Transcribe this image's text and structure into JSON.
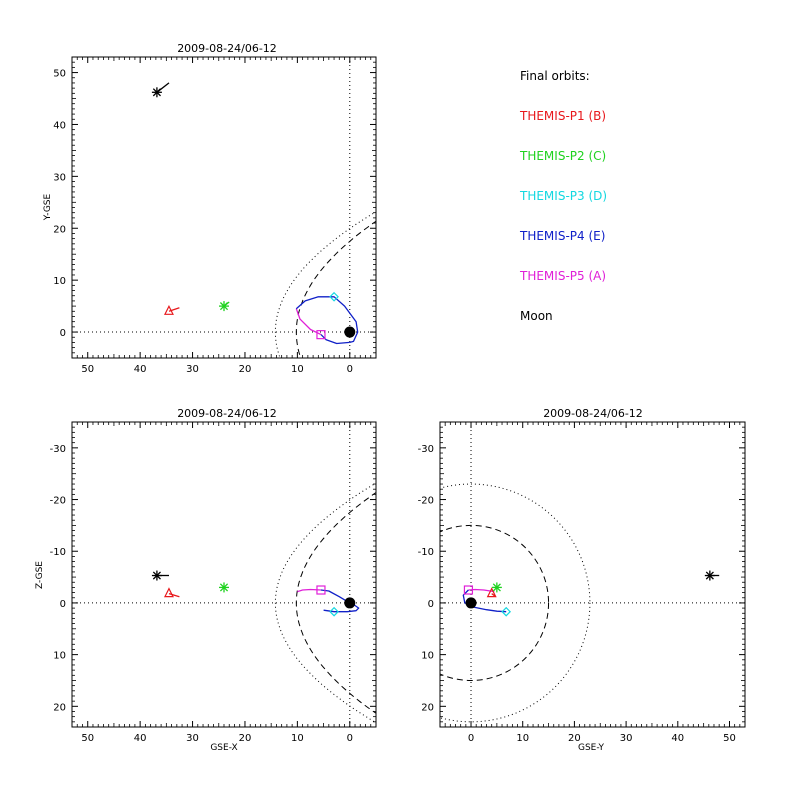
{
  "colors": {
    "P1": "#e8181c",
    "P2": "#1fd21f",
    "P3": "#14d8e0",
    "P4": "#1020c8",
    "P5": "#e020d8",
    "Moon": "#000000"
  },
  "legend": {
    "title": "Final orbits:",
    "items": [
      {
        "label": "THEMIS-P1 (B)",
        "color_key": "P1"
      },
      {
        "label": "THEMIS-P2 (C)",
        "color_key": "P2"
      },
      {
        "label": "THEMIS-P3 (D)",
        "color_key": "P3"
      },
      {
        "label": "THEMIS-P4 (E)",
        "color_key": "P4"
      },
      {
        "label": "THEMIS-P5 (A)",
        "color_key": "P5"
      },
      {
        "label": "Moon",
        "color_key": "Moon"
      }
    ]
  },
  "chart_data": [
    {
      "type": "scatter",
      "title": "2009-08-24/06-12",
      "xlabel": "",
      "ylabel": "Y-GSE",
      "xlim": [
        53,
        -5
      ],
      "ylim": [
        53,
        -5
      ],
      "xticks": [
        50,
        40,
        30,
        20,
        10,
        0
      ],
      "yticks": [
        0,
        10,
        20,
        30,
        40,
        50
      ],
      "markers": [
        {
          "name": "THEMIS-P1 (B)",
          "x": 34.5,
          "y": 4.0,
          "symbol": "triangle",
          "color_key": "P1",
          "tail": [
            [
              34.5,
              4.0
            ],
            [
              32.5,
              4.7
            ]
          ]
        },
        {
          "name": "THEMIS-P2 (C)",
          "x": 24.0,
          "y": 5.0,
          "symbol": "asterisk",
          "color_key": "P2",
          "tail": [
            [
              24.0,
              5.0
            ],
            [
              23.0,
              5.8
            ]
          ]
        },
        {
          "name": "THEMIS-P3 (D)",
          "x": 3.0,
          "y": 6.8,
          "symbol": "diamond",
          "color_key": "P3",
          "tail": []
        },
        {
          "name": "THEMIS-P5 (A)",
          "x": 5.5,
          "y": -0.5,
          "symbol": "square",
          "color_key": "P5",
          "tail": []
        },
        {
          "name": "Moon",
          "x": 36.8,
          "y": 46.2,
          "symbol": "asterisk",
          "color_key": "Moon",
          "tail": [
            [
              36.8,
              46.2
            ],
            [
              34.5,
              48.0
            ]
          ]
        }
      ],
      "orbits": [
        {
          "name": "THEMIS-P4 (E)",
          "color_key": "P4",
          "points": [
            [
              0,
              -2.0
            ],
            [
              2.5,
              -2.2
            ],
            [
              4.5,
              -1.5
            ],
            [
              5.5,
              -0.5
            ]
          ]
        },
        {
          "name": "THEMIS-P5 (A)",
          "color_key": "P5",
          "points": [
            [
              5.5,
              -0.5
            ],
            [
              7.5,
              0.5
            ],
            [
              9.5,
              2.5
            ],
            [
              10.2,
              4.5
            ]
          ]
        },
        {
          "name": "THEMIS-P4 (E)",
          "color_key": "P4",
          "points": [
            [
              10.2,
              4.5
            ],
            [
              8.5,
              6.0
            ],
            [
              6.0,
              6.8
            ],
            [
              3.0,
              6.8
            ],
            [
              1.0,
              5.0
            ],
            [
              -1.2,
              2.0
            ],
            [
              -1.5,
              0.0
            ],
            [
              -0.7,
              -1.8
            ],
            [
              0,
              -2.0
            ]
          ]
        }
      ],
      "earth": {
        "x": 0,
        "y": 0
      }
    },
    {
      "type": "scatter",
      "title": "2009-08-24/06-12",
      "xlabel": "GSE-X",
      "ylabel": "Z-GSE",
      "xlim": [
        53,
        -5
      ],
      "ylim": [
        -35,
        24
      ],
      "xticks": [
        50,
        40,
        30,
        20,
        10,
        0
      ],
      "yticks": [
        -30,
        -20,
        -10,
        0,
        10,
        20
      ],
      "markers": [
        {
          "name": "THEMIS-P1 (B)",
          "x": 34.5,
          "y": -1.8,
          "symbol": "triangle",
          "color_key": "P1",
          "tail": [
            [
              34.5,
              -1.8
            ],
            [
              32.5,
              -1.2
            ]
          ]
        },
        {
          "name": "THEMIS-P2 (C)",
          "x": 24.0,
          "y": -3.0,
          "symbol": "asterisk",
          "color_key": "P2",
          "tail": []
        },
        {
          "name": "THEMIS-P3 (D)",
          "x": 3.0,
          "y": 1.7,
          "symbol": "diamond",
          "color_key": "P3",
          "tail": []
        },
        {
          "name": "THEMIS-P5 (A)",
          "x": 5.5,
          "y": -2.5,
          "symbol": "square",
          "color_key": "P5",
          "tail": []
        },
        {
          "name": "Moon",
          "x": 36.8,
          "y": -5.3,
          "symbol": "asterisk",
          "color_key": "Moon",
          "tail": [
            [
              36.8,
              -5.3
            ],
            [
              34.5,
              -5.3
            ]
          ]
        }
      ],
      "orbits": [
        {
          "name": "THEMIS-P5 (A)",
          "color_key": "P5",
          "points": [
            [
              10.0,
              -2.2
            ],
            [
              9.0,
              -2.5
            ],
            [
              7.5,
              -2.6
            ],
            [
              5.5,
              -2.5
            ]
          ]
        },
        {
          "name": "THEMIS-P4 (E)",
          "color_key": "P4",
          "points": [
            [
              5.5,
              -2.5
            ],
            [
              4.0,
              -2.3
            ],
            [
              2.0,
              -1.2
            ],
            [
              0.5,
              -0.3
            ],
            [
              -1.0,
              0.5
            ],
            [
              -1.7,
              1.0
            ],
            [
              -1.2,
              1.5
            ],
            [
              0.5,
              1.7
            ],
            [
              3.0,
              1.7
            ],
            [
              5.0,
              1.4
            ]
          ]
        }
      ],
      "earth": {
        "x": 0,
        "y": 0
      }
    },
    {
      "type": "scatter",
      "title": "2009-08-24/06-12",
      "xlabel": "GSE-Y",
      "ylabel": "",
      "xlim": [
        -6,
        53
      ],
      "ylim": [
        -35,
        24
      ],
      "xticks": [
        0,
        10,
        20,
        30,
        40,
        50
      ],
      "yticks": [
        -30,
        -20,
        -10,
        0,
        10,
        20
      ],
      "markers": [
        {
          "name": "THEMIS-P1 (B)",
          "x": 4.0,
          "y": -1.8,
          "symbol": "triangle",
          "color_key": "P1",
          "tail": [
            [
              4.0,
              -1.8
            ],
            [
              4.8,
              -1.2
            ]
          ]
        },
        {
          "name": "THEMIS-P2 (C)",
          "x": 5.0,
          "y": -3.0,
          "symbol": "asterisk",
          "color_key": "P2",
          "tail": []
        },
        {
          "name": "THEMIS-P3 (D)",
          "x": 6.8,
          "y": 1.7,
          "symbol": "diamond",
          "color_key": "P3",
          "tail": []
        },
        {
          "name": "THEMIS-P5 (A)",
          "x": -0.5,
          "y": -2.5,
          "symbol": "square",
          "color_key": "P5",
          "tail": []
        },
        {
          "name": "Moon",
          "x": 46.2,
          "y": -5.3,
          "symbol": "asterisk",
          "color_key": "Moon",
          "tail": [
            [
              46.2,
              -5.3
            ],
            [
              48.0,
              -5.3
            ]
          ]
        }
      ],
      "orbits": [
        {
          "name": "THEMIS-P5 (A)",
          "color_key": "P5",
          "points": [
            [
              4.5,
              -2.2
            ],
            [
              2.5,
              -2.5
            ],
            [
              0.8,
              -2.6
            ],
            [
              -0.5,
              -2.5
            ]
          ]
        },
        {
          "name": "THEMIS-P4 (E)",
          "color_key": "P4",
          "points": [
            [
              -0.5,
              -2.5
            ],
            [
              -1.5,
              -1.5
            ],
            [
              -1.2,
              0.0
            ],
            [
              0.5,
              0.8
            ],
            [
              3.0,
              1.3
            ],
            [
              5.0,
              1.6
            ],
            [
              6.8,
              1.7
            ]
          ]
        }
      ],
      "earth": {
        "x": 0,
        "y": 0
      }
    }
  ]
}
